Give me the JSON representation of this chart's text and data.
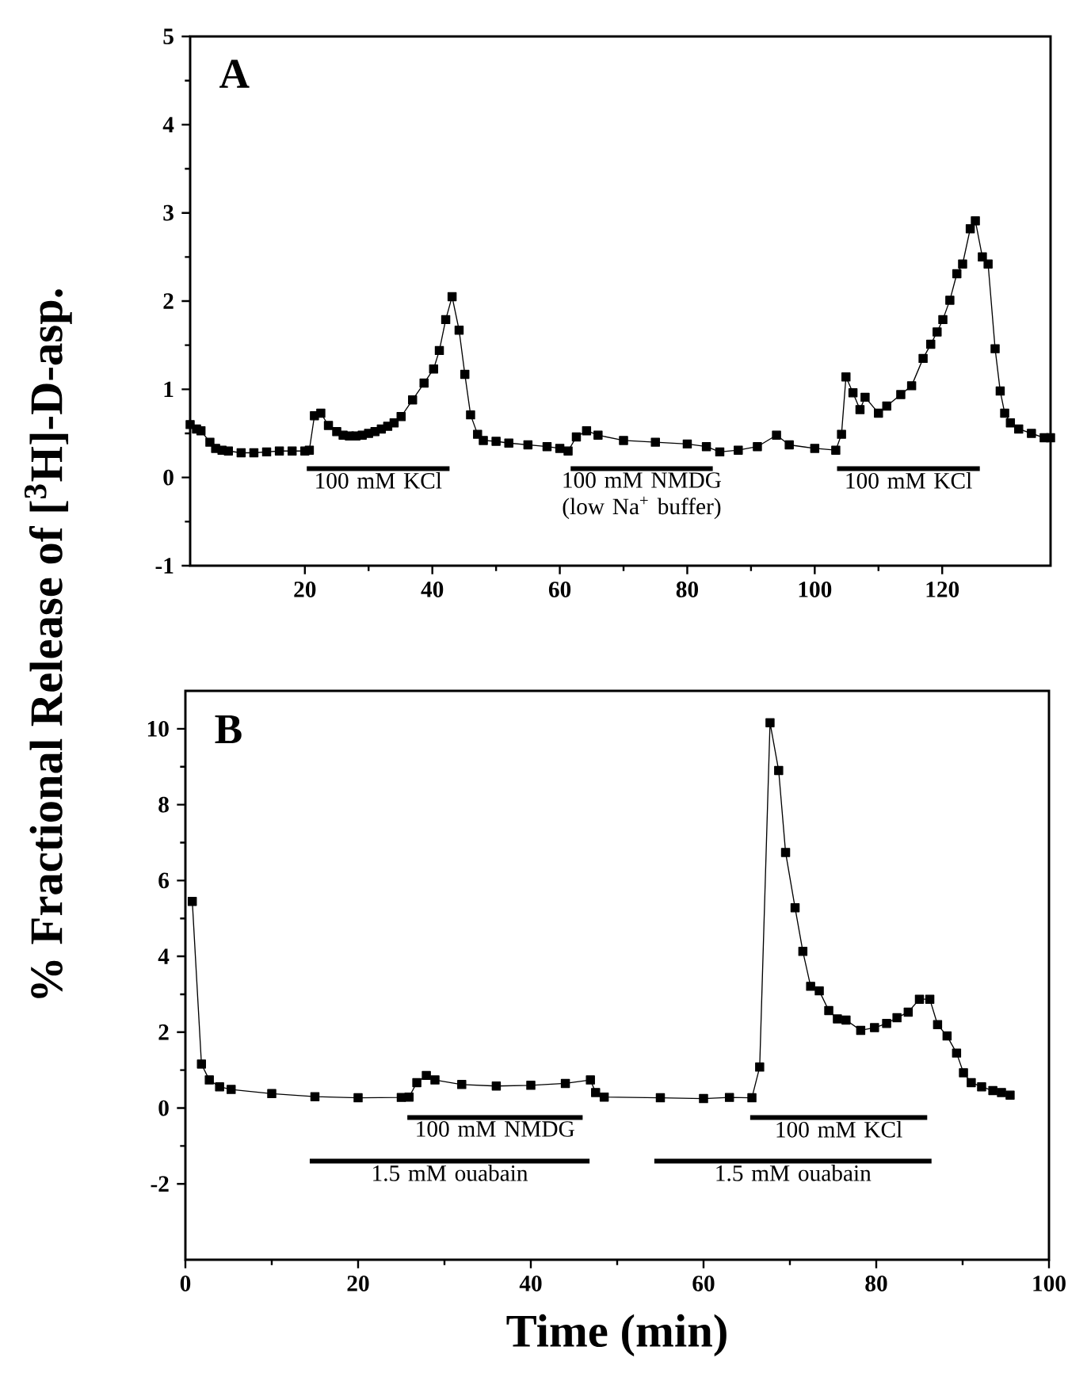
{
  "chart_data": [
    {
      "type": "line",
      "title": "A",
      "ylabel": "% Fractional Release of [$^{3}$H]-D-asp.",
      "line_style": "solid",
      "xlim": [
        2,
        137
      ],
      "xticks": [
        20,
        40,
        60,
        80,
        100,
        120
      ],
      "ylim": [
        -1,
        5
      ],
      "yticks": [
        -1,
        0,
        1,
        2,
        3,
        4,
        5
      ],
      "series": [
        {
          "color": "#000000",
          "marker": "square",
          "x": [
            2,
            3,
            3.7,
            5.1,
            6,
            7,
            8,
            10,
            12,
            14,
            16,
            18,
            20,
            20.7,
            21.5,
            22.5,
            23.7,
            25,
            26,
            27,
            28,
            29,
            30,
            31,
            32,
            33,
            34,
            35.1,
            36.9,
            38.7,
            40.2,
            41.1,
            42.1,
            43.1,
            44.2,
            45.1,
            46,
            47.1,
            48,
            50,
            52,
            55,
            58,
            60,
            61.3,
            62.6,
            64.2,
            66,
            70,
            75,
            80,
            83,
            85.1,
            88,
            91,
            94,
            96,
            100,
            103.3,
            104.2,
            104.9,
            106,
            107.1,
            107.9,
            110,
            111.3,
            113.5,
            115.2,
            117,
            118.2,
            119.2,
            120.1,
            121.2,
            122.3,
            123.2,
            124.4,
            125.2,
            126.3,
            127.2,
            128.3,
            129.1,
            129.8,
            130.7,
            132,
            134,
            136,
            137
          ],
          "values": [
            0.6,
            0.55,
            0.53,
            0.4,
            0.33,
            0.31,
            0.3,
            0.28,
            0.28,
            0.29,
            0.3,
            0.3,
            0.3,
            0.31,
            0.7,
            0.73,
            0.59,
            0.52,
            0.48,
            0.47,
            0.47,
            0.48,
            0.5,
            0.52,
            0.55,
            0.58,
            0.62,
            0.69,
            0.88,
            1.07,
            1.23,
            1.44,
            1.79,
            2.05,
            1.67,
            1.17,
            0.71,
            0.49,
            0.42,
            0.41,
            0.39,
            0.37,
            0.35,
            0.33,
            0.3,
            0.46,
            0.53,
            0.48,
            0.42,
            0.4,
            0.38,
            0.35,
            0.29,
            0.31,
            0.35,
            0.48,
            0.37,
            0.33,
            0.31,
            0.49,
            1.14,
            0.96,
            0.77,
            0.91,
            0.73,
            0.81,
            0.94,
            1.04,
            1.35,
            1.51,
            1.65,
            1.79,
            2.01,
            2.31,
            2.42,
            2.82,
            2.91,
            2.5,
            2.42,
            1.46,
            0.98,
            0.73,
            0.62,
            0.55,
            0.5,
            0.45,
            0.45
          ]
        },
        {
          "name": "100 mM KCl",
          "color": "#000000",
          "marker": "none",
          "x": [
            20.3,
            42.7
          ],
          "values": [
            0.1,
            0.1
          ]
        },
        {
          "name": "100 mM NMDG (low Na$^{+}$ buffer)",
          "color": "#000000",
          "marker": "none",
          "x": [
            61.7,
            84
          ],
          "values": [
            0.1,
            0.1
          ]
        },
        {
          "name": "100 mM KCl",
          "color": "#000000",
          "marker": "none",
          "x": [
            103.5,
            125.9
          ],
          "values": [
            0.1,
            0.1
          ]
        }
      ]
    },
    {
      "type": "line",
      "title": "B",
      "xlabel": "Time (min)",
      "line_style": "solid",
      "xlim": [
        0,
        100
      ],
      "xticks": [
        0,
        20,
        40,
        60,
        80,
        100
      ],
      "ylim": [
        -4,
        11
      ],
      "yticks": [
        -2,
        0,
        2,
        4,
        6,
        8,
        10
      ],
      "series": [
        {
          "color": "#000000",
          "marker": "square",
          "x": [
            0.8,
            1.86,
            2.77,
            3.96,
            5.3,
            10,
            15,
            20,
            25,
            25.9,
            26.8,
            27.9,
            28.9,
            32,
            36,
            40,
            44,
            46.9,
            47.5,
            48.5,
            55,
            60,
            63,
            65.6,
            66.5,
            67.7,
            68.7,
            69.5,
            70.6,
            71.5,
            72.4,
            73.4,
            74.5,
            75.5,
            76.5,
            78.2,
            79.8,
            81.2,
            82.4,
            83.7,
            85,
            86.2,
            87.1,
            88.2,
            89.3,
            90.1,
            91,
            92.2,
            93.5,
            94.5,
            95.5
          ],
          "values": [
            5.45,
            1.16,
            0.74,
            0.56,
            0.49,
            0.38,
            0.3,
            0.27,
            0.28,
            0.29,
            0.67,
            0.86,
            0.74,
            0.62,
            0.58,
            0.6,
            0.65,
            0.74,
            0.41,
            0.29,
            0.27,
            0.25,
            0.28,
            0.27,
            1.08,
            10.16,
            8.9,
            6.74,
            5.28,
            4.13,
            3.21,
            3.09,
            2.57,
            2.35,
            2.32,
            2.05,
            2.12,
            2.23,
            2.38,
            2.53,
            2.87,
            2.87,
            2.2,
            1.9,
            1.45,
            0.93,
            0.67,
            0.56,
            0.46,
            0.41,
            0.34
          ]
        },
        {
          "name": "100 mM NMDG",
          "color": "#000000",
          "marker": "none",
          "x": [
            25.7,
            46
          ],
          "values": [
            -0.25,
            -0.25
          ]
        },
        {
          "name": "1.5 mM ouabain",
          "color": "#000000",
          "marker": "none",
          "x": [
            14.4,
            46.8
          ],
          "values": [
            -1.4,
            -1.4
          ]
        },
        {
          "name": "100 mM KCl",
          "color": "#000000",
          "marker": "none",
          "x": [
            65.4,
            85.9
          ],
          "values": [
            -0.25,
            -0.25
          ]
        },
        {
          "name": "1.5 mM ouabain",
          "color": "#000000",
          "marker": "none",
          "x": [
            54.3,
            86.4
          ],
          "values": [
            -1.4,
            -1.4
          ]
        }
      ]
    }
  ]
}
